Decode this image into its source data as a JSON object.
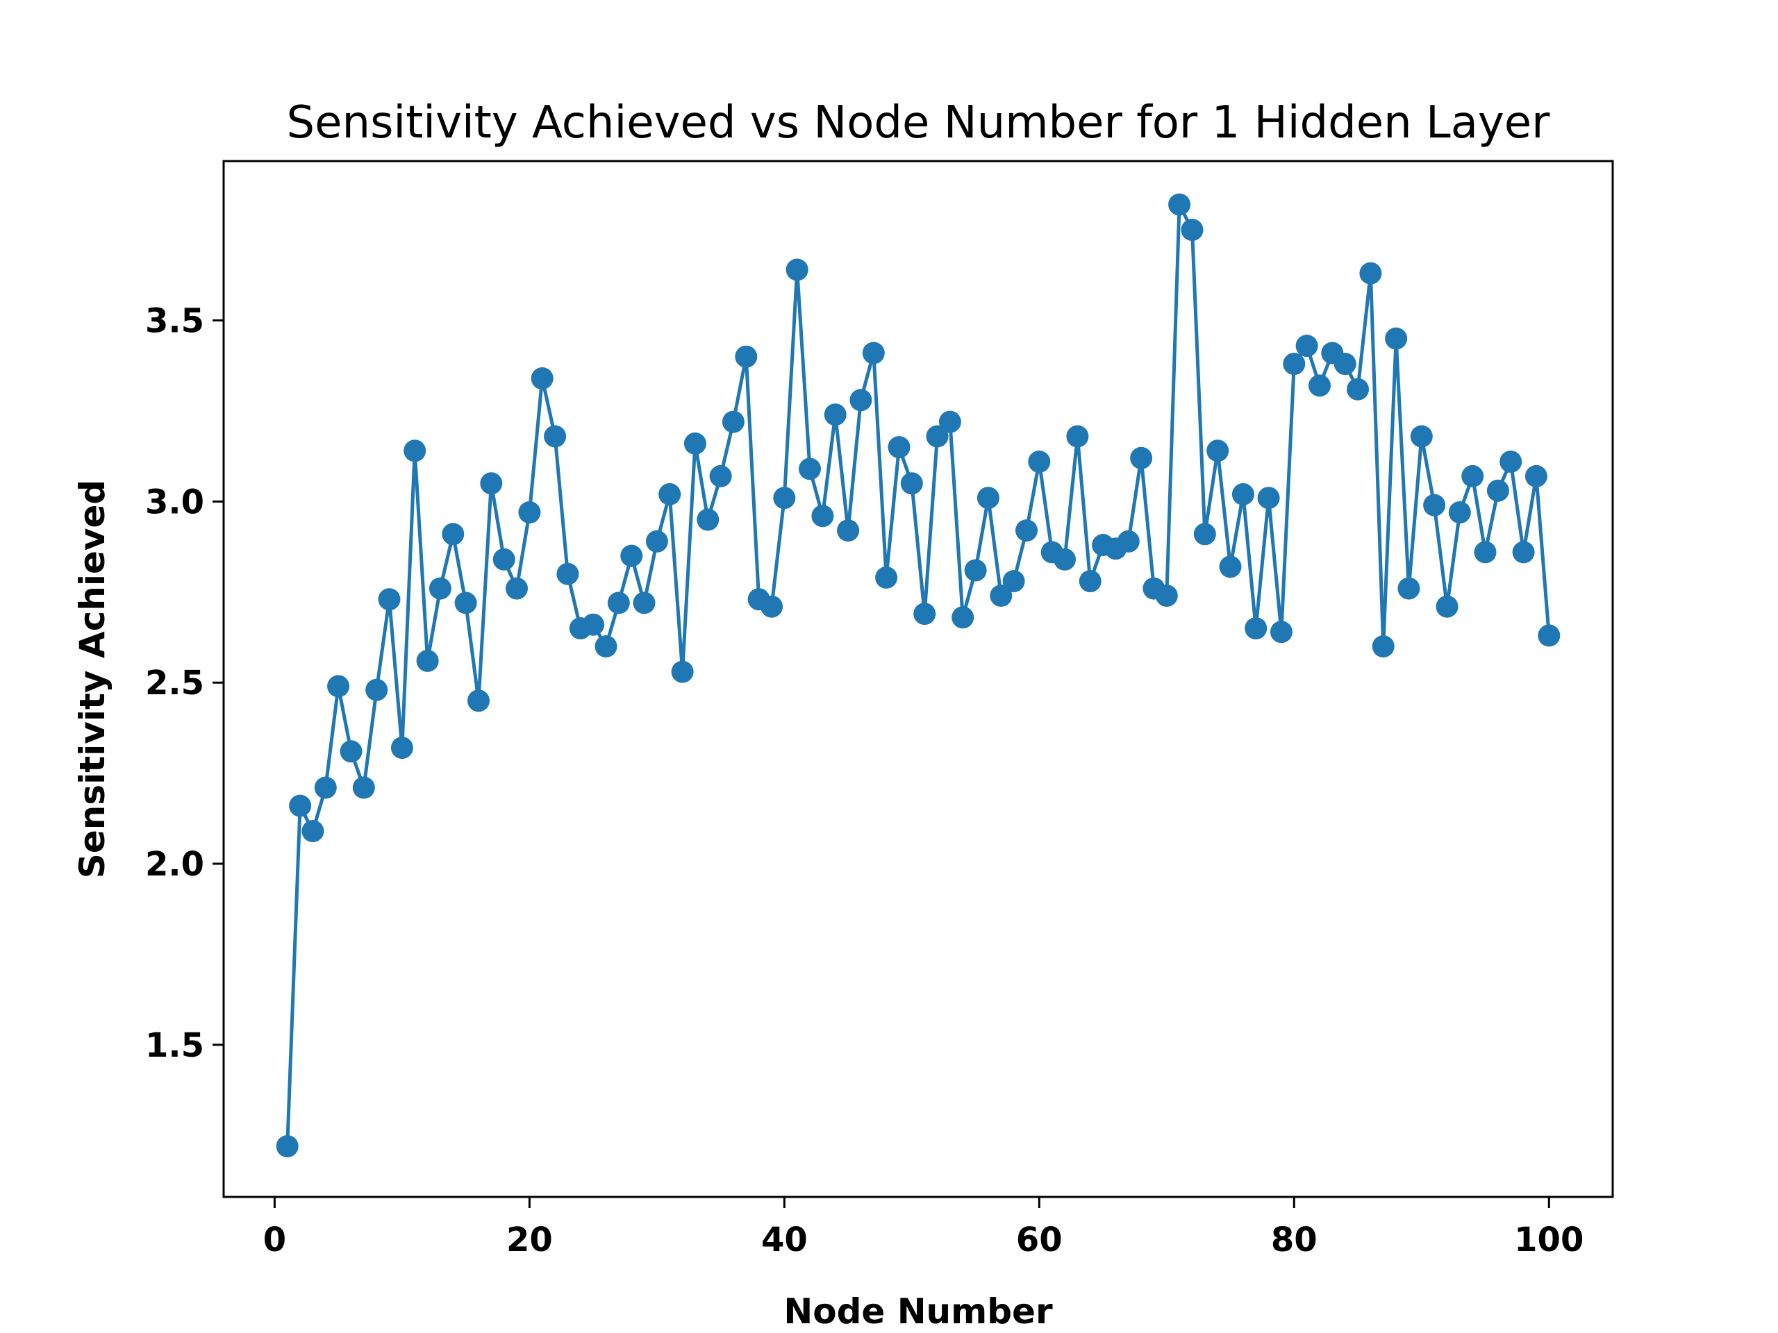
{
  "chart_data": {
    "type": "line",
    "title": "Sensitivity Achieved vs Node Number for 1 Hidden Layer",
    "xlabel": "Node Number",
    "ylabel": "Sensitivity Achieved",
    "xlim": [
      -4,
      105
    ],
    "ylim": [
      1.08,
      3.94
    ],
    "x_ticks": [
      0,
      20,
      40,
      60,
      80,
      100
    ],
    "y_ticks": [
      1.5,
      2.0,
      2.5,
      3.0,
      3.5
    ],
    "x_tick_labels": [
      "0",
      "20",
      "40",
      "60",
      "80",
      "100"
    ],
    "y_tick_labels": [
      "1.5",
      "2.0",
      "2.5",
      "3.0",
      "3.5"
    ],
    "grid": false,
    "legend": false,
    "series": [
      {
        "color": "#1f77b4",
        "marker": "circle",
        "x": [
          1,
          2,
          3,
          4,
          5,
          6,
          7,
          8,
          9,
          10,
          11,
          12,
          13,
          14,
          15,
          16,
          17,
          18,
          19,
          20,
          21,
          22,
          23,
          24,
          25,
          26,
          27,
          28,
          29,
          30,
          31,
          32,
          33,
          34,
          35,
          36,
          37,
          38,
          39,
          40,
          41,
          42,
          43,
          44,
          45,
          46,
          47,
          48,
          49,
          50,
          51,
          52,
          53,
          54,
          55,
          56,
          57,
          58,
          59,
          60,
          61,
          62,
          63,
          64,
          65,
          66,
          67,
          68,
          69,
          70,
          71,
          72,
          73,
          74,
          75,
          76,
          77,
          78,
          79,
          80,
          81,
          82,
          83,
          84,
          85,
          86,
          87,
          88,
          89,
          90,
          91,
          92,
          93,
          94,
          95,
          96,
          97,
          98,
          99,
          100
        ],
        "values": [
          1.22,
          2.16,
          2.09,
          2.21,
          2.49,
          2.31,
          2.21,
          2.48,
          2.73,
          2.32,
          3.14,
          2.56,
          2.76,
          2.91,
          2.72,
          2.45,
          3.05,
          2.84,
          2.76,
          2.97,
          3.34,
          3.18,
          2.8,
          2.65,
          2.66,
          2.6,
          2.72,
          2.85,
          2.72,
          2.89,
          3.02,
          2.53,
          3.16,
          2.95,
          3.07,
          3.22,
          3.4,
          2.73,
          2.71,
          3.01,
          3.64,
          3.09,
          2.96,
          3.24,
          2.92,
          3.28,
          3.41,
          2.79,
          3.15,
          3.05,
          2.69,
          3.18,
          3.22,
          2.68,
          2.81,
          3.01,
          2.74,
          2.78,
          2.92,
          3.11,
          2.86,
          2.84,
          3.18,
          2.78,
          2.88,
          2.87,
          2.89,
          3.12,
          2.76,
          2.74,
          3.82,
          3.75,
          2.91,
          3.14,
          2.82,
          3.02,
          2.65,
          3.01,
          2.64,
          3.38,
          3.43,
          3.32,
          3.41,
          3.38,
          3.31,
          3.63,
          2.6,
          3.45,
          2.76,
          3.18,
          2.99,
          2.71,
          2.97,
          3.07,
          2.86,
          3.03,
          3.11,
          2.86,
          3.07,
          2.63
        ]
      }
    ]
  }
}
